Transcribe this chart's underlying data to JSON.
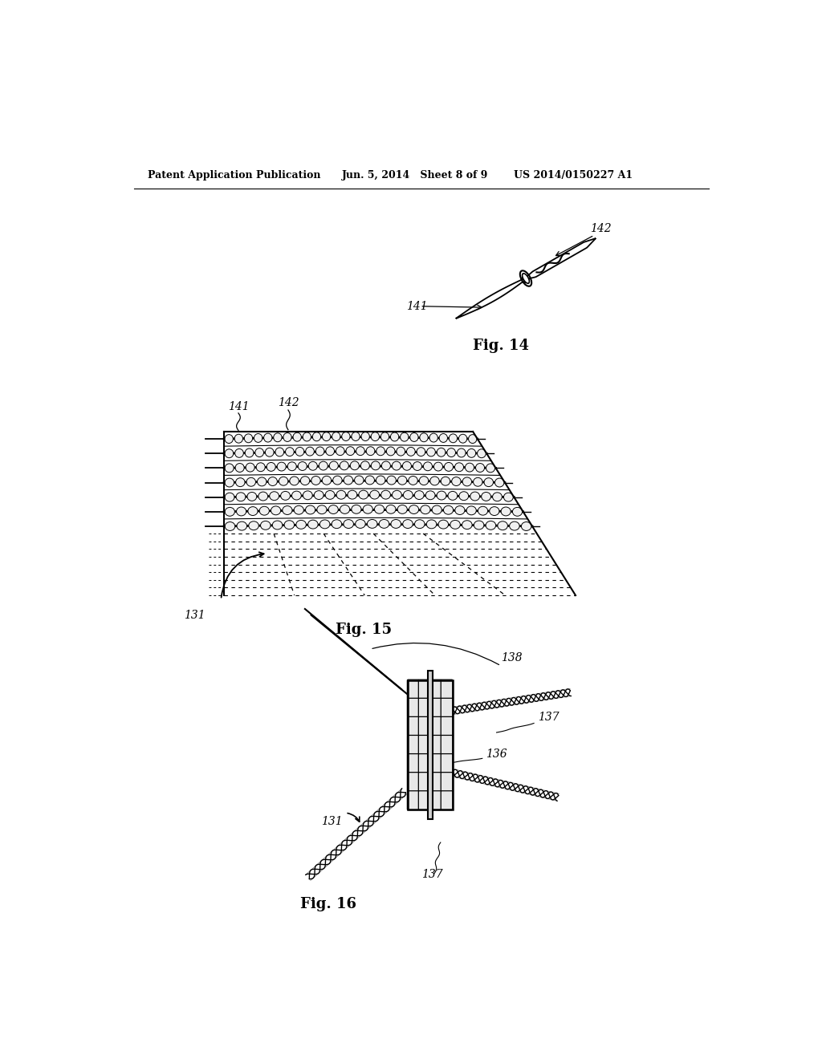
{
  "bg_color": "#ffffff",
  "header_left": "Patent Application Publication",
  "header_mid": "Jun. 5, 2014   Sheet 8 of 9",
  "header_right": "US 2014/0150227 A1",
  "fig14_label": "Fig. 14",
  "fig15_label": "Fig. 15",
  "fig16_label": "Fig. 16",
  "label_141": "141",
  "label_142": "142",
  "label_131": "131",
  "label_136": "136",
  "label_137": "137",
  "label_138": "138",
  "line_color": "#000000",
  "text_color": "#000000"
}
